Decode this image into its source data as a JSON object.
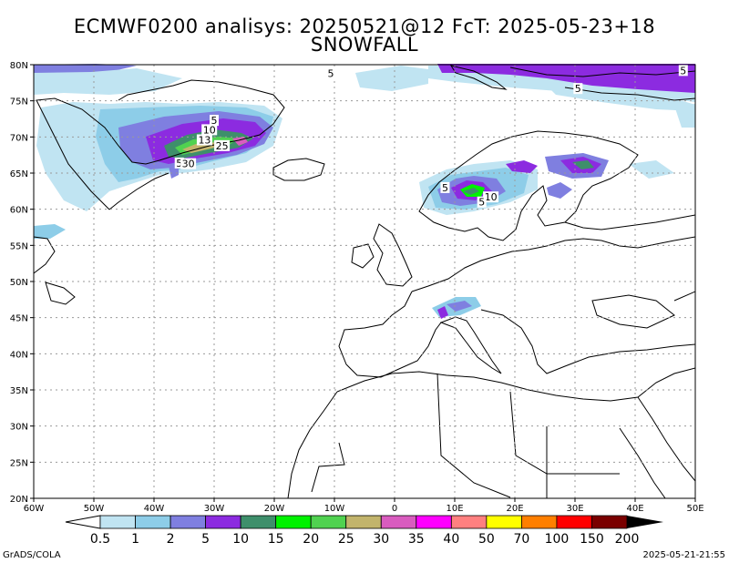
{
  "title": {
    "line1": "ECMWF0200 analisys: 20250521@12 FcT: 2025-05-23+18",
    "line2": "SNOWFALL"
  },
  "map": {
    "lon_labels": [
      "60W",
      "50W",
      "40W",
      "30W",
      "20W",
      "10W",
      "0",
      "10E",
      "20E",
      "30E",
      "40E",
      "50E"
    ],
    "lat_labels": [
      "80N",
      "75N",
      "70N",
      "65N",
      "60N",
      "55N",
      "50N",
      "45N",
      "40N",
      "35N",
      "30N",
      "25N",
      "20N"
    ],
    "contour_labels": [
      {
        "text": "5",
        "lon": -10.6,
        "lat": 78.8
      },
      {
        "text": "5",
        "lon": 48.0,
        "lat": 79.2
      },
      {
        "text": "5",
        "lon": 30.5,
        "lat": 76.7
      },
      {
        "text": "5",
        "lon": -30.0,
        "lat": 72.3
      },
      {
        "text": "10",
        "lon": -30.8,
        "lat": 71.0
      },
      {
        "text": "13",
        "lon": -31.6,
        "lat": 69.6
      },
      {
        "text": "25",
        "lon": -28.7,
        "lat": 68.8
      },
      {
        "text": "5",
        "lon": -35.8,
        "lat": 66.4
      },
      {
        "text": "30",
        "lon": -34.3,
        "lat": 66.3
      },
      {
        "text": "5",
        "lon": 8.4,
        "lat": 63.0
      },
      {
        "text": "10",
        "lon": 16.0,
        "lat": 61.7
      },
      {
        "text": "5",
        "lon": 14.5,
        "lat": 61.0
      }
    ]
  },
  "legend": {
    "levels": [
      "0.5",
      "1",
      "2",
      "5",
      "10",
      "15",
      "20",
      "25",
      "30",
      "35",
      "40",
      "50",
      "70",
      "100",
      "150",
      "200"
    ],
    "colors": [
      "#c0e4f2",
      "#8dcde8",
      "#7f7fe0",
      "#8c2be0",
      "#3e8f6b",
      "#00f200",
      "#50d250",
      "#c2b46c",
      "#d95cbf",
      "#ff00ff",
      "#ff8080",
      "#ffff00",
      "#ff7f00",
      "#ff0000",
      "#7a0000"
    ]
  },
  "footer": {
    "credit": "GrADS/COLA",
    "timestamp": "2025-05-21-21:55"
  }
}
